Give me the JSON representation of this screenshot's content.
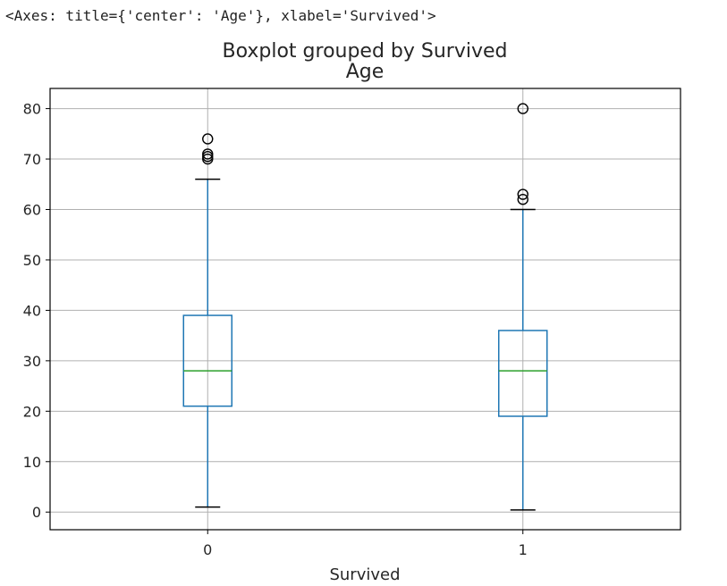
{
  "output_repr": "<Axes: title={'center': 'Age'}, xlabel='Survived'>",
  "chart_data": {
    "type": "box",
    "suptitle": "Boxplot grouped by Survived",
    "title": "Age",
    "xlabel": "Survived",
    "ylabel": "",
    "categories": [
      "0",
      "1"
    ],
    "ylim": [
      -3.5,
      84
    ],
    "yticks": [
      0,
      10,
      20,
      30,
      40,
      50,
      60,
      70,
      80
    ],
    "grid": true,
    "boxes": [
      {
        "category": "0",
        "whisker_low": 1,
        "q1": 21,
        "median": 28,
        "q3": 39,
        "whisker_high": 66,
        "outliers": [
          70,
          70.5,
          71,
          74
        ]
      },
      {
        "category": "1",
        "whisker_low": 0.42,
        "q1": 19,
        "median": 28,
        "q3": 36,
        "whisker_high": 60,
        "outliers": [
          62,
          63,
          80
        ]
      }
    ],
    "colors": {
      "box": "#1f77b4",
      "median": "#2ca02c",
      "grid": "#b0b0b0",
      "axes": "#000000"
    }
  }
}
